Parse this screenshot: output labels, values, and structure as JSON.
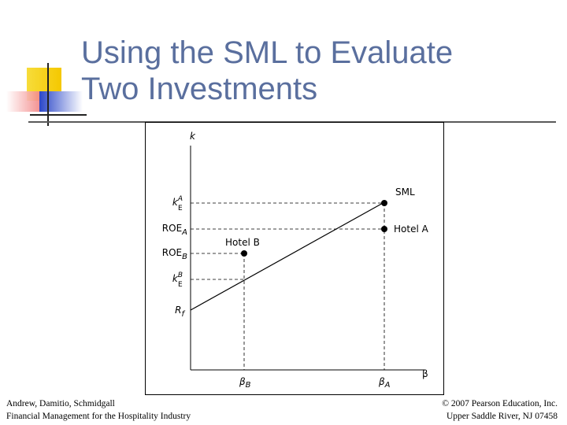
{
  "slide": {
    "title_line1": "Using the SML to Evaluate",
    "title_line2": "Two Investments"
  },
  "diagram": {
    "y_axis_label": "k",
    "x_axis_label": "β",
    "y_labels": {
      "ke_a": {
        "base": "k",
        "sub": "E",
        "sup": "A"
      },
      "roe_a": {
        "base": "ROE",
        "sub": "A"
      },
      "roe_b": {
        "base": "ROE",
        "sub": "B"
      },
      "ke_b": {
        "base": "k",
        "sub": "E",
        "sup": "B"
      },
      "rf": {
        "base": "R",
        "sub": "f"
      }
    },
    "x_labels": {
      "beta_b": {
        "base": "β",
        "sub": "B"
      },
      "beta_a": {
        "base": "β",
        "sub": "A"
      }
    },
    "point_labels": {
      "sml": "SML",
      "hotel_a": "Hotel A",
      "hotel_b": "Hotel B"
    }
  },
  "footer": {
    "left_line1": "Andrew, Damitio, Schmidgall",
    "left_line2": "Financial Management for the Hospitality Industry",
    "right_line1": "© 2007 Pearson Education, Inc.",
    "right_line2": "Upper Saddle River, NJ 07458"
  },
  "colors": {
    "title": "#5a6f9e",
    "logo_yellow": "#f5d21c",
    "logo_red": "#f07070",
    "logo_blue": "#2a46c8"
  }
}
